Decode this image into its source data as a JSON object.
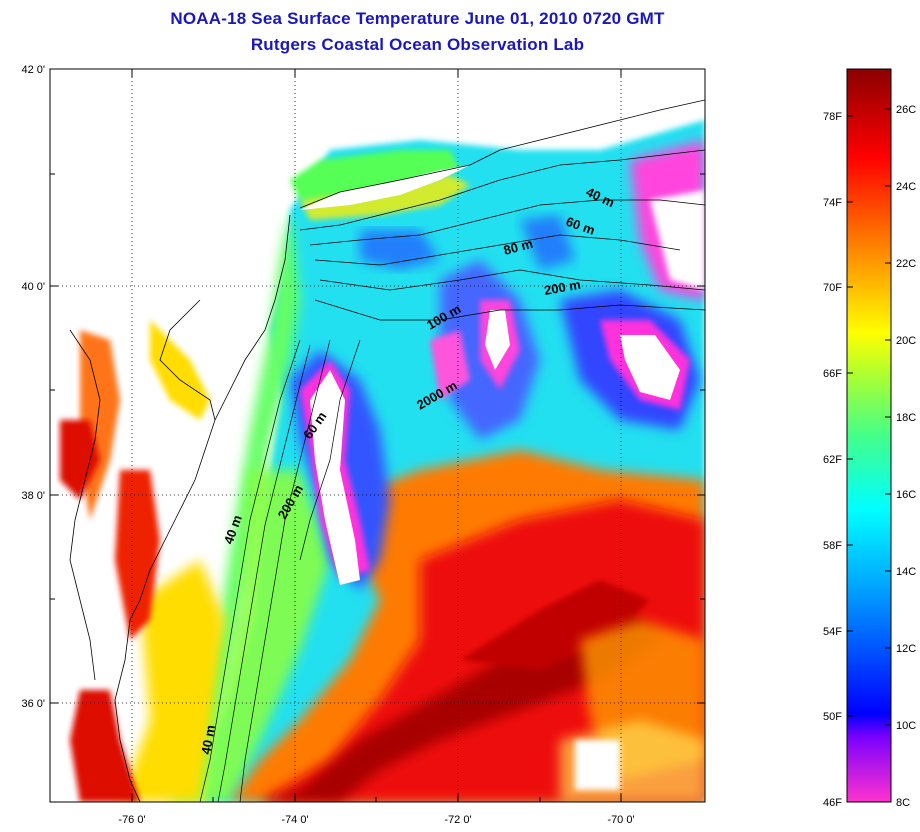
{
  "title": {
    "line1": "NOAA-18 Sea Surface Temperature June 01, 2010 0720 GMT",
    "line2": "Rutgers Coastal Ocean Observation Lab"
  },
  "axes": {
    "lat_labels": [
      "42 0'",
      "40 0'",
      "38 0'",
      "36 0'"
    ],
    "lon_labels": [
      "-76 0'",
      "-74 0'",
      "-72 0'",
      "-70 0'"
    ]
  },
  "colorbar": {
    "f_labels": [
      "78F",
      "74F",
      "70F",
      "66F",
      "62F",
      "58F",
      "54F",
      "50F",
      "46F"
    ],
    "c_labels": [
      "26C",
      "24C",
      "22C",
      "20C",
      "18C",
      "16C",
      "14C",
      "12C",
      "10C",
      "8C"
    ]
  },
  "depth_contours": [
    "40 m",
    "60 m",
    "80 m",
    "200 m",
    "100 m",
    "2000 m",
    "60 m",
    "200 m",
    "40 m",
    "40 m"
  ],
  "colors": {
    "title": "#1a17c0",
    "warm": "#c00000",
    "cool": "#00e0ff",
    "cold": "#ff00ff"
  }
}
